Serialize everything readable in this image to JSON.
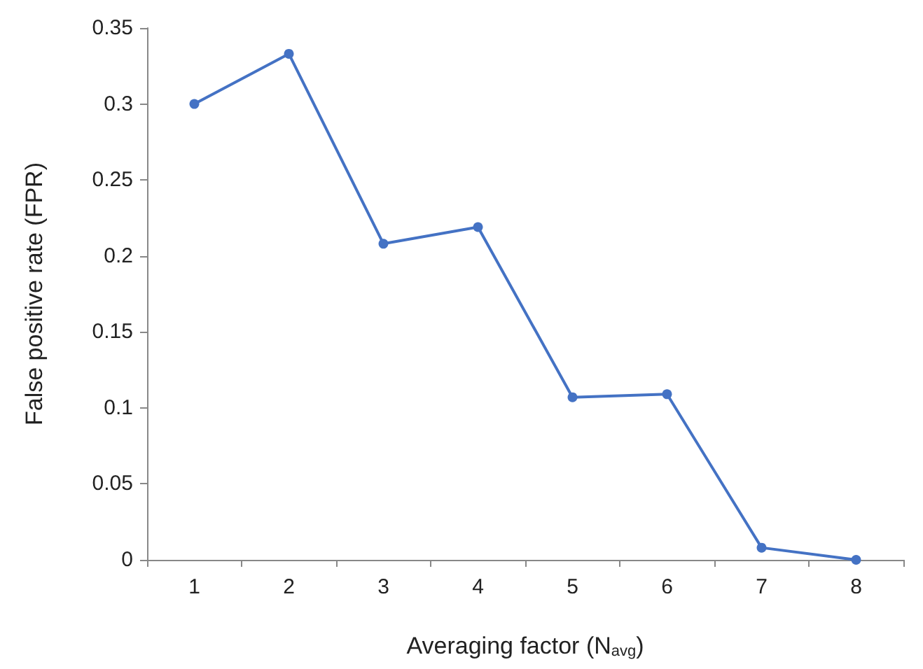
{
  "chart_data": {
    "type": "line",
    "xlabel": "Averaging factor (N$_{avg}$)",
    "ylabel": "False positive rate (FPR)",
    "categories": [
      "1",
      "2",
      "3",
      "4",
      "5",
      "6",
      "7",
      "8"
    ],
    "series": [
      {
        "color": "#4472c4",
        "values": [
          0.3,
          0.333,
          0.208,
          0.219,
          0.107,
          0.109,
          0.008,
          0
        ]
      }
    ],
    "ylim": [
      0,
      0.35
    ],
    "yticks": [
      0,
      0.05,
      0.1,
      0.15,
      0.2,
      0.25,
      0.3,
      0.35
    ],
    "grid": false,
    "marker": "circle",
    "line_style": "solid"
  }
}
